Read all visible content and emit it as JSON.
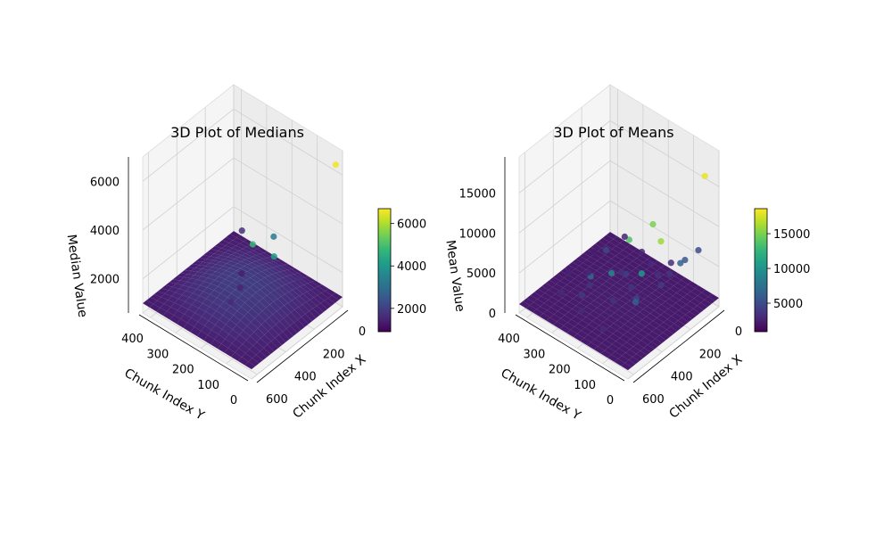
{
  "colormap": "viridis",
  "colormap_stops": [
    "#440154",
    "#482878",
    "#3e4989",
    "#31688e",
    "#26828e",
    "#1f9e89",
    "#35b779",
    "#6ece58",
    "#b5de2b",
    "#fde725"
  ],
  "chart_data": [
    {
      "type": "scatter3d",
      "title": "3D Plot of Medians",
      "xlabel": "Chunk Index X",
      "ylabel": "Chunk Index Y",
      "zlabel": "Median Value",
      "x_ticks": [
        0,
        200,
        400,
        600
      ],
      "y_ticks": [
        0,
        100,
        200,
        300,
        400
      ],
      "z_ticks": [
        2000,
        4000,
        6000
      ],
      "xlim": [
        0,
        640
      ],
      "ylim": [
        0,
        430
      ],
      "zlim": [
        600,
        7000
      ],
      "colorbar": {
        "ticks": [
          2000,
          4000,
          6000
        ],
        "range": [
          900,
          6700
        ]
      },
      "surface": {
        "base_value": 1000,
        "peak_value": 1700,
        "grid_x": 60,
        "grid_y": 40
      },
      "outliers": [
        {
          "x": 560,
          "y": 40,
          "z": 5500,
          "c": 4800
        },
        {
          "x": 470,
          "y": 8,
          "z": 5600,
          "c": 3300
        },
        {
          "x": 30,
          "y": 10,
          "z": 6500,
          "c": 6600
        },
        {
          "x": 500,
          "y": 160,
          "z": 2100,
          "c": 1600
        },
        {
          "x": 120,
          "y": 330,
          "z": 2200,
          "c": 1700
        },
        {
          "x": 400,
          "y": 180,
          "z": 2100,
          "c": 1500
        },
        {
          "x": 300,
          "y": 230,
          "z": 1900,
          "c": 1400
        },
        {
          "x": 250,
          "y": 130,
          "z": 3000,
          "c": 4200
        },
        {
          "x": 200,
          "y": 60,
          "z": 2300,
          "c": 1700
        }
      ]
    },
    {
      "type": "scatter3d",
      "title": "3D Plot of Means",
      "xlabel": "Chunk Index X",
      "ylabel": "Chunk Index Y",
      "zlabel": "Mean Value",
      "x_ticks": [
        0,
        200,
        400,
        600
      ],
      "y_ticks": [
        0,
        100,
        200,
        300,
        400
      ],
      "z_ticks": [
        0,
        5000,
        10000,
        15000
      ],
      "xlim": [
        0,
        640
      ],
      "ylim": [
        0,
        430
      ],
      "zlim": [
        0,
        19500
      ],
      "colorbar": {
        "ticks": [
          5000,
          10000,
          15000
        ],
        "range": [
          900,
          18600
        ]
      },
      "surface": {
        "base_value": 1100,
        "peak_value": 1300,
        "grid_x": 60,
        "grid_y": 40
      },
      "outliers": [
        {
          "x": 560,
          "y": 40,
          "z": 15500,
          "c": 13600
        },
        {
          "x": 450,
          "y": 8,
          "z": 16500,
          "c": 15000
        },
        {
          "x": 90,
          "y": 5,
          "z": 17500,
          "c": 18000
        },
        {
          "x": 230,
          "y": 100,
          "z": 9500,
          "c": 16000
        },
        {
          "x": 600,
          "y": 170,
          "z": 9000,
          "c": 7000
        },
        {
          "x": 200,
          "y": 40,
          "z": 7500,
          "c": 6500
        },
        {
          "x": 150,
          "y": 50,
          "z": 7000,
          "c": 5800
        },
        {
          "x": 20,
          "y": 70,
          "z": 6000,
          "c": 5000
        },
        {
          "x": 330,
          "y": 120,
          "z": 6500,
          "c": 10400
        },
        {
          "x": 400,
          "y": 200,
          "z": 6000,
          "c": 9200
        },
        {
          "x": 260,
          "y": 300,
          "z": 5000,
          "c": 4800
        },
        {
          "x": 500,
          "y": 260,
          "z": 3500,
          "c": 3800
        },
        {
          "x": 280,
          "y": 210,
          "z": 4000,
          "c": 4200
        },
        {
          "x": 350,
          "y": 150,
          "z": 4500,
          "c": 3600
        },
        {
          "x": 180,
          "y": 140,
          "z": 3800,
          "c": 3400
        },
        {
          "x": 420,
          "y": 90,
          "z": 5200,
          "c": 4600
        },
        {
          "x": 120,
          "y": 200,
          "z": 3200,
          "c": 3200
        },
        {
          "x": 520,
          "y": 330,
          "z": 2800,
          "c": 3000
        },
        {
          "x": 80,
          "y": 260,
          "z": 3000,
          "c": 2800
        },
        {
          "x": 300,
          "y": 60,
          "z": 5800,
          "c": 4000
        },
        {
          "x": 40,
          "y": 350,
          "z": 2600,
          "c": 2600
        },
        {
          "x": 600,
          "y": 120,
          "z": 3400,
          "c": 3000
        },
        {
          "x": 380,
          "y": 380,
          "z": 2400,
          "c": 2600
        },
        {
          "x": 460,
          "y": 160,
          "z": 4200,
          "c": 3600
        },
        {
          "x": 240,
          "y": 250,
          "z": 2900,
          "c": 3400
        },
        {
          "x": 150,
          "y": 110,
          "z": 4100,
          "c": 3800
        },
        {
          "x": 560,
          "y": 230,
          "z": 3000,
          "c": 3000
        },
        {
          "x": 330,
          "y": 330,
          "z": 2600,
          "c": 2800
        },
        {
          "x": 70,
          "y": 150,
          "z": 3600,
          "c": 3200
        },
        {
          "x": 480,
          "y": 60,
          "z": 6200,
          "c": 6500
        },
        {
          "x": 200,
          "y": 380,
          "z": 2400,
          "c": 2400
        },
        {
          "x": 410,
          "y": 280,
          "z": 3100,
          "c": 3600
        }
      ]
    }
  ]
}
